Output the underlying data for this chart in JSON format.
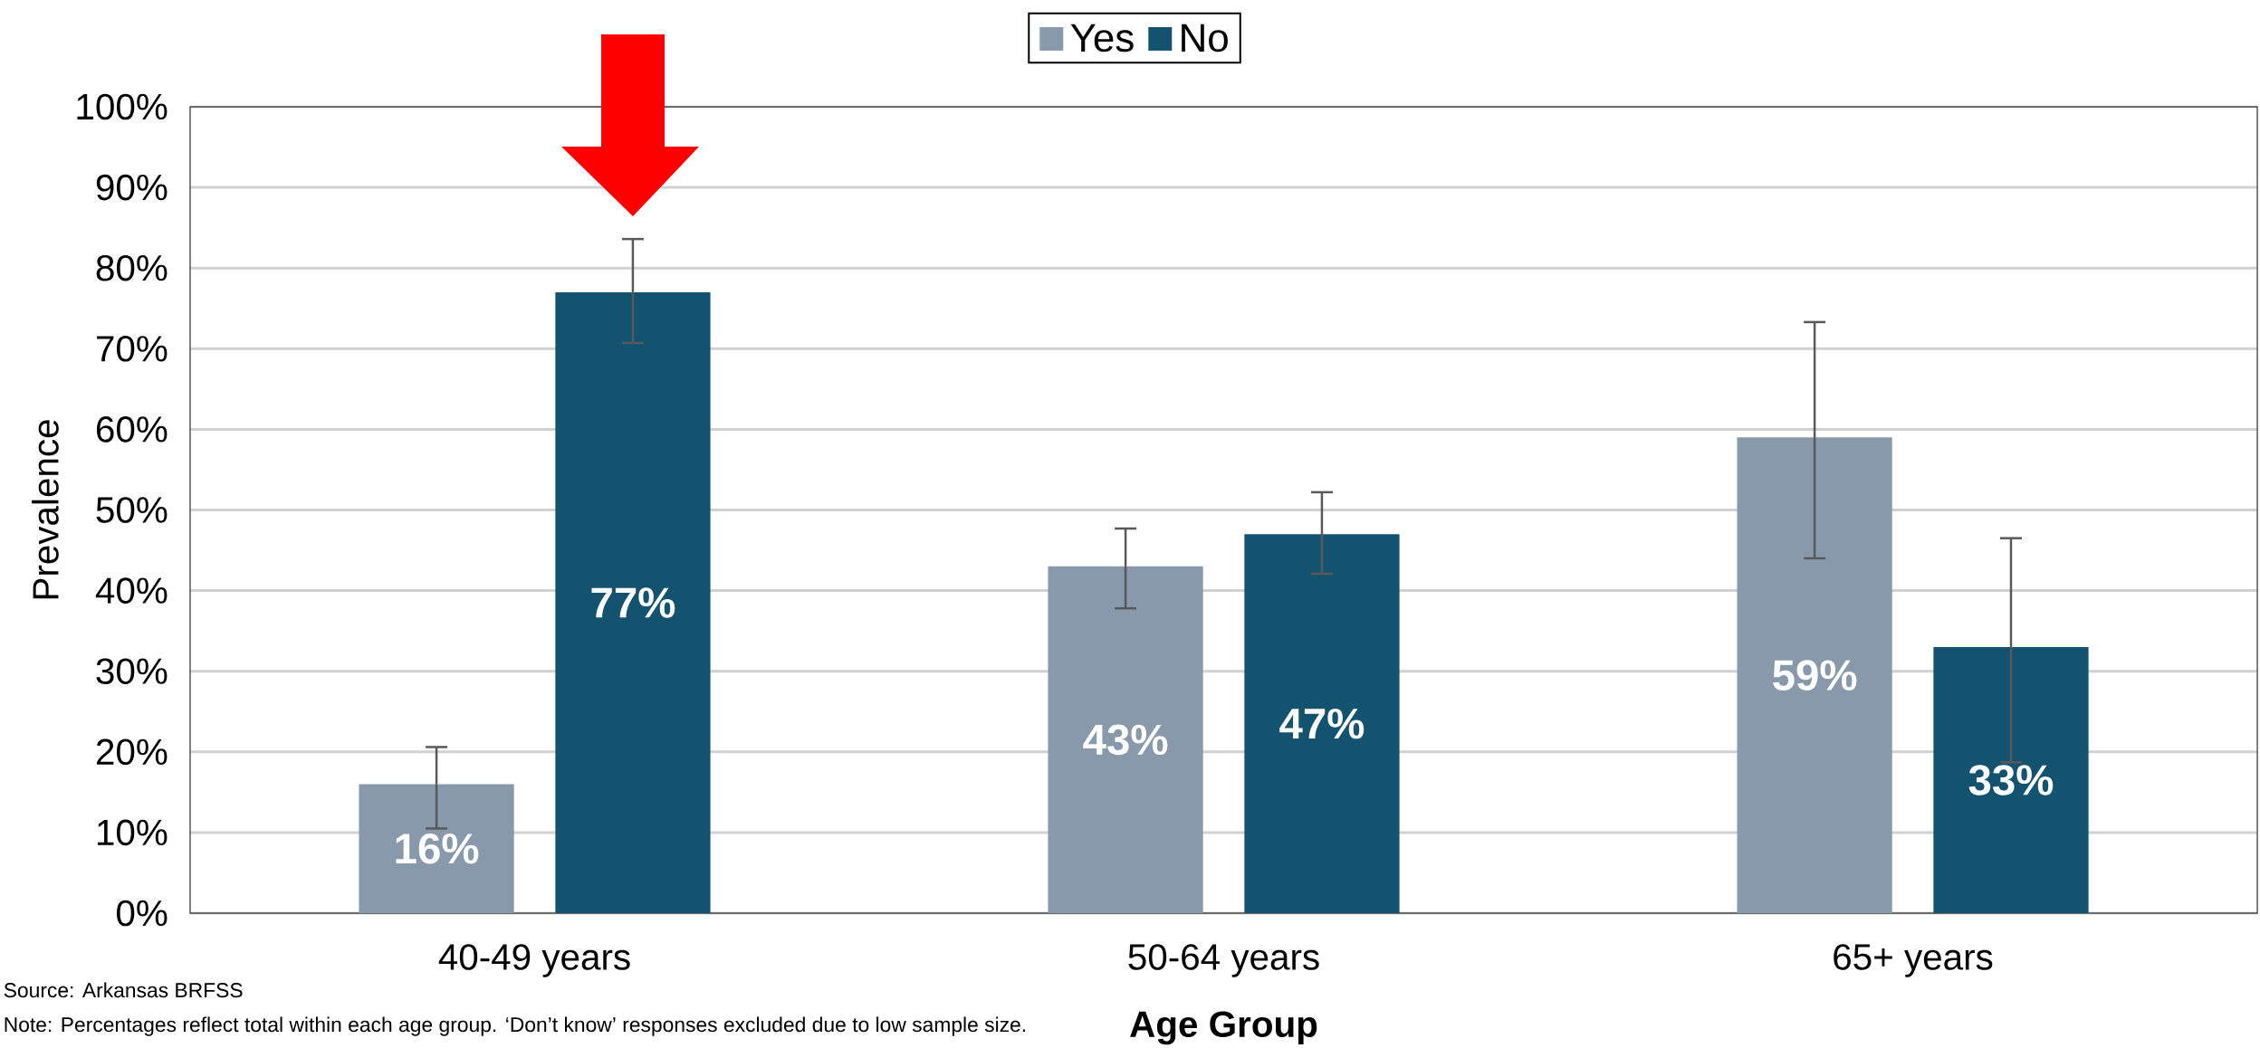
{
  "chart_data": {
    "type": "bar",
    "xlabel": "Age Group",
    "ylabel": "Prevalence",
    "categories": [
      "40-49 years",
      "50-64 years",
      "65+ years"
    ],
    "series": [
      {
        "name": "Yes",
        "color": "#8799aa",
        "values": [
          16,
          43,
          59
        ],
        "value_labels": [
          "16%",
          "43%",
          "59%"
        ],
        "errors": [
          [
            10.5,
            20.6
          ],
          [
            37.8,
            47.7
          ],
          [
            44.0,
            73.3
          ]
        ]
      },
      {
        "name": "No",
        "color": "#14536f",
        "values": [
          77,
          47,
          33
        ],
        "value_labels": [
          "77%",
          "47%",
          "33%"
        ],
        "errors": [
          [
            70.7,
            83.6
          ],
          [
            42.1,
            52.2
          ],
          [
            18.7,
            46.5
          ]
        ]
      }
    ],
    "ylim": [
      0,
      100
    ],
    "yticks": [
      {
        "value": 0,
        "label": "0%"
      },
      {
        "value": 10,
        "label": "10%"
      },
      {
        "value": 20,
        "label": "20%"
      },
      {
        "value": 30,
        "label": "30%"
      },
      {
        "value": 40,
        "label": "40%"
      },
      {
        "value": 50,
        "label": "50%"
      },
      {
        "value": 60,
        "label": "60%"
      },
      {
        "value": 70,
        "label": "70%"
      },
      {
        "value": 80,
        "label": "80%"
      },
      {
        "value": 90,
        "label": "90%"
      },
      {
        "value": 100,
        "label": "100%"
      }
    ],
    "grid": "y",
    "legend": "top",
    "annotations": [
      "Source: Arkansas BRFSS",
      "Note: Percentages reflect total within each age group. ‘Don’t know’ responses excluded due to low sample size."
    ]
  }
}
